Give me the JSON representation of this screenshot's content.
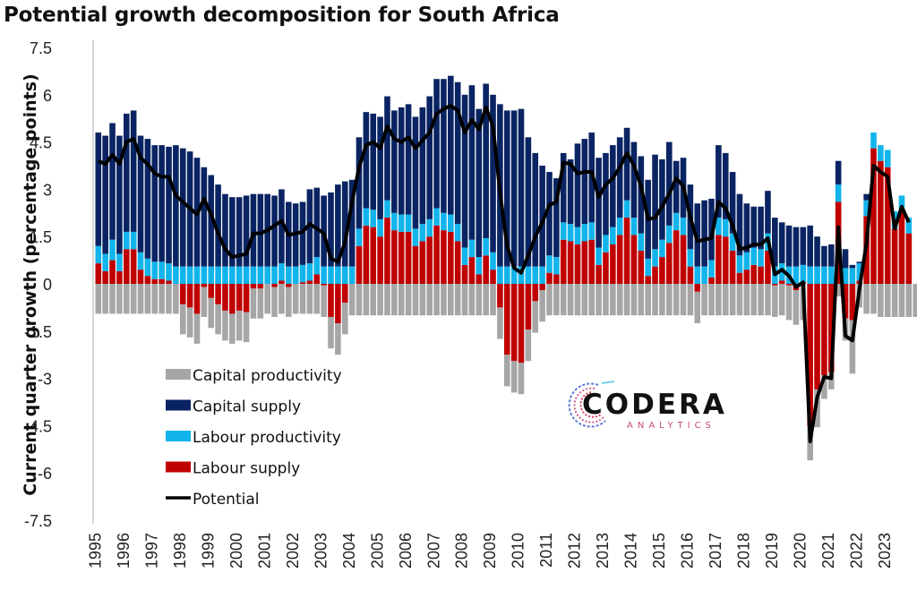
{
  "chart_data": {
    "type": "bar",
    "stacked": true,
    "title": "Potential growth decomposition for South Africa",
    "xlabel": "",
    "ylabel": "Current quarter growth (percentage points)",
    "ylim": [
      -7.5,
      7.5
    ],
    "yticks": [
      7.5,
      6,
      4.5,
      3,
      1.5,
      0,
      -1.5,
      -3,
      -4.5,
      -6,
      -7.5
    ],
    "ytick_labels": [
      "7.5",
      "6",
      "4.5",
      "3",
      "1.5",
      "0",
      "-1.5",
      "-3",
      "-4.5",
      "-6",
      "-7.5"
    ],
    "xtick_labels": [
      "1995",
      "1996",
      "1997",
      "1998",
      "1999",
      "2000",
      "2001",
      "2002",
      "2003",
      "2004",
      "2005",
      "2006",
      "2007",
      "2008",
      "2009",
      "2010",
      "2011",
      "2012",
      "2013",
      "2014",
      "2015",
      "2016",
      "2017",
      "2018",
      "2019",
      "2020",
      "2021",
      "2022",
      "2023"
    ],
    "frequency": "quarterly",
    "start": "1995Q1",
    "grid": false,
    "legend_position": "bottom-left",
    "series": [
      {
        "name": "Capital productivity",
        "color": "#a6a6a6",
        "type": "bar",
        "values": [
          -0.95,
          -0.95,
          -0.95,
          -0.95,
          -0.95,
          -0.95,
          -0.95,
          -0.95,
          -0.95,
          -0.95,
          -0.95,
          -0.95,
          -0.95,
          -0.95,
          -0.95,
          -0.95,
          -0.95,
          -0.95,
          -0.95,
          -0.95,
          -0.95,
          -0.95,
          -0.95,
          -0.95,
          -0.95,
          -0.95,
          -0.95,
          -0.95,
          -0.95,
          -0.95,
          -0.95,
          -0.95,
          -1.0,
          -1.0,
          -1.0,
          -1.0,
          -1.0,
          -1.0,
          -1.0,
          -1.0,
          -1.0,
          -1.0,
          -1.0,
          -1.0,
          -1.0,
          -1.0,
          -1.0,
          -1.0,
          -1.0,
          -1.0,
          -1.0,
          -1.0,
          -1.0,
          -1.0,
          -1.0,
          -1.0,
          -1.0,
          -1.0,
          -1.0,
          -1.0,
          -1.0,
          -1.0,
          -1.0,
          -1.0,
          -1.0,
          -1.0,
          -1.0,
          -1.0,
          -1.0,
          -1.0,
          -1.0,
          -1.0,
          -1.0,
          -1.0,
          -1.0,
          -1.0,
          -1.0,
          -1.0,
          -1.0,
          -1.0,
          -1.0,
          -1.0,
          -1.0,
          -1.0,
          -1.0,
          -1.0,
          -1.0,
          -1.0,
          -1.0,
          -1.0,
          -1.0,
          -1.0,
          -1.0,
          -1.0,
          -1.0,
          -1.0,
          -1.0,
          -1.0,
          -1.1,
          -1.1,
          -1.15,
          -1.1,
          -1.2,
          -0.75,
          -0.55,
          -0.4,
          -0.7,
          -1.7,
          -0.75,
          -0.95,
          -0.95,
          -1.05,
          -1.05,
          -1.05,
          -1.05,
          -1.05,
          -1.05,
          -1.05,
          -1.05,
          -1.05
        ]
      },
      {
        "name": "Capital supply",
        "color": "#0a2463",
        "type": "bar",
        "values": [
          3.6,
          3.75,
          3.7,
          3.75,
          3.75,
          3.85,
          3.7,
          3.8,
          3.7,
          3.7,
          3.7,
          3.85,
          3.75,
          3.65,
          3.45,
          3.15,
          2.9,
          2.6,
          2.3,
          2.2,
          2.2,
          2.25,
          2.3,
          2.3,
          2.3,
          2.25,
          2.35,
          2.05,
          2.0,
          2.0,
          2.35,
          2.2,
          2.25,
          2.35,
          2.6,
          2.7,
          2.75,
          2.9,
          3.05,
          3.05,
          3.25,
          3.3,
          3.25,
          3.4,
          3.5,
          3.55,
          3.7,
          3.9,
          4.1,
          4.25,
          4.4,
          4.5,
          4.85,
          4.9,
          4.7,
          4.9,
          5.0,
          5.15,
          4.95,
          4.95,
          5.0,
          4.1,
          3.6,
          3.2,
          2.65,
          2.5,
          2.2,
          2.05,
          2.65,
          2.7,
          2.85,
          2.85,
          2.6,
          2.6,
          2.55,
          2.3,
          2.4,
          2.45,
          2.5,
          3.0,
          2.55,
          2.65,
          1.65,
          1.9,
          2.05,
          2.0,
          2.1,
          1.95,
          2.3,
          2.1,
          1.95,
          1.95,
          1.55,
          1.3,
          1.35,
          1.35,
          1.55,
          1.3,
          1.3,
          1.25,
          1.2,
          1.3,
          0.95,
          0.65,
          0.7,
          0.75,
          0.6,
          0.1,
          0.05,
          0.2,
          0.0,
          0.0,
          0.0,
          0.0,
          0.0,
          0.0
        ]
      },
      {
        "name": "Labour productivity",
        "color": "#12b4eb",
        "type": "bar",
        "values": [
          0.55,
          0.55,
          0.65,
          0.55,
          0.55,
          0.55,
          0.55,
          0.55,
          0.55,
          0.55,
          0.55,
          0.55,
          0.55,
          0.55,
          0.55,
          0.55,
          0.55,
          0.55,
          0.55,
          0.55,
          0.55,
          0.55,
          0.55,
          0.55,
          0.55,
          0.55,
          0.55,
          0.55,
          0.55,
          0.55,
          0.55,
          0.55,
          0.55,
          0.55,
          0.55,
          0.55,
          0.55,
          0.55,
          0.55,
          0.55,
          0.55,
          0.55,
          0.55,
          0.55,
          0.55,
          0.55,
          0.55,
          0.55,
          0.55,
          0.55,
          0.55,
          0.55,
          0.55,
          0.55,
          0.55,
          0.55,
          0.55,
          0.55,
          0.55,
          0.55,
          0.55,
          0.55,
          0.55,
          0.55,
          0.55,
          0.55,
          0.55,
          0.55,
          0.55,
          0.55,
          0.55,
          0.55,
          0.55,
          0.55,
          0.55,
          0.55,
          0.55,
          0.55,
          0.55,
          0.55,
          0.55,
          0.55,
          0.55,
          0.55,
          0.55,
          0.55,
          0.55,
          0.55,
          0.55,
          0.55,
          0.55,
          0.55,
          0.55,
          0.55,
          0.55,
          0.55,
          0.55,
          0.55,
          0.55,
          0.55,
          0.55,
          0.55,
          0.55,
          0.55,
          0.55,
          0.55,
          0.5,
          0.5,
          0.55,
          0.5,
          0.5,
          0.5,
          0.55,
          0.55,
          0.5,
          0.5
        ]
      },
      {
        "name": "Labour supply",
        "color": "#c00000",
        "type": "bar",
        "values": [
          0.65,
          0.4,
          0.75,
          0.4,
          1.1,
          1.1,
          0.45,
          0.25,
          0.15,
          0.15,
          0.1,
          0.0,
          -0.65,
          -0.75,
          -0.95,
          -0.1,
          -0.45,
          -0.65,
          -0.85,
          -0.95,
          -0.85,
          -0.9,
          -0.15,
          -0.15,
          0.0,
          -0.1,
          0.1,
          -0.1,
          0.0,
          0.05,
          0.1,
          0.3,
          -0.05,
          -1.05,
          -1.25,
          -0.6,
          0.0,
          1.2,
          1.85,
          1.8,
          1.5,
          2.1,
          1.7,
          1.65,
          1.65,
          1.2,
          1.35,
          1.5,
          1.85,
          1.7,
          1.65,
          1.35,
          0.6,
          0.85,
          0.3,
          0.9,
          0.45,
          -0.75,
          -2.25,
          -2.45,
          -2.5,
          -1.45,
          -0.55,
          -0.2,
          0.35,
          0.3,
          1.4,
          1.35,
          1.25,
          1.35,
          1.4,
          0.6,
          1.0,
          1.25,
          1.55,
          2.1,
          1.55,
          1.05,
          0.25,
          0.55,
          0.85,
          1.3,
          1.7,
          1.55,
          0.55,
          -0.25,
          0.0,
          0.2,
          1.55,
          1.5,
          1.05,
          0.35,
          0.45,
          0.6,
          0.55,
          1.05,
          -0.05,
          0.1,
          -0.05,
          -0.2,
          0.05,
          -4.5,
          -3.35,
          -2.9,
          -2.8,
          2.6,
          -1.1,
          -1.15,
          0.1,
          2.15,
          4.3,
          3.9,
          3.7,
          1.75,
          2.3,
          1.6
        ]
      },
      {
        "name": "Potential",
        "color": "#000000",
        "type": "line",
        "values": [
          3.9,
          3.8,
          4.1,
          3.8,
          4.5,
          4.6,
          4.0,
          3.8,
          3.5,
          3.4,
          3.4,
          2.8,
          2.6,
          2.4,
          2.2,
          2.7,
          2.2,
          1.6,
          1.1,
          0.85,
          0.9,
          0.95,
          1.6,
          1.6,
          1.7,
          1.85,
          2.0,
          1.55,
          1.6,
          1.65,
          1.9,
          1.75,
          1.6,
          0.8,
          0.7,
          1.3,
          2.6,
          3.7,
          4.4,
          4.5,
          4.3,
          5.0,
          4.6,
          4.5,
          4.65,
          4.3,
          4.55,
          4.8,
          5.4,
          5.55,
          5.65,
          5.5,
          4.8,
          5.2,
          4.9,
          5.6,
          5.0,
          2.9,
          1.2,
          0.5,
          0.35,
          0.9,
          1.5,
          1.95,
          2.5,
          2.6,
          3.85,
          3.8,
          3.5,
          3.55,
          3.55,
          2.75,
          3.15,
          3.35,
          3.7,
          4.15,
          3.75,
          3.1,
          2.05,
          2.1,
          2.45,
          2.85,
          3.35,
          3.1,
          2.1,
          1.35,
          1.4,
          1.45,
          2.6,
          2.4,
          1.85,
          1.1,
          1.15,
          1.25,
          1.25,
          1.45,
          0.3,
          0.45,
          0.25,
          -0.1,
          0.05,
          -5.0,
          -3.6,
          -2.95,
          -3.0,
          1.8,
          -1.65,
          -1.8,
          -0.15,
          1.3,
          3.75,
          3.55,
          3.4,
          1.75,
          2.45,
          1.95
        ]
      }
    ]
  },
  "legend": [
    {
      "label": "Capital productivity",
      "kind": "box",
      "color": "#a6a6a6"
    },
    {
      "label": "Capital supply",
      "kind": "box",
      "color": "#0a2463"
    },
    {
      "label": "Labour productivity",
      "kind": "box",
      "color": "#12b4eb"
    },
    {
      "label": "Labour supply",
      "kind": "box",
      "color": "#c00000"
    },
    {
      "label": "Potential",
      "kind": "line",
      "color": "#000000"
    }
  ],
  "logo": {
    "name": "CODERA",
    "sub": "ANALYTICS"
  }
}
